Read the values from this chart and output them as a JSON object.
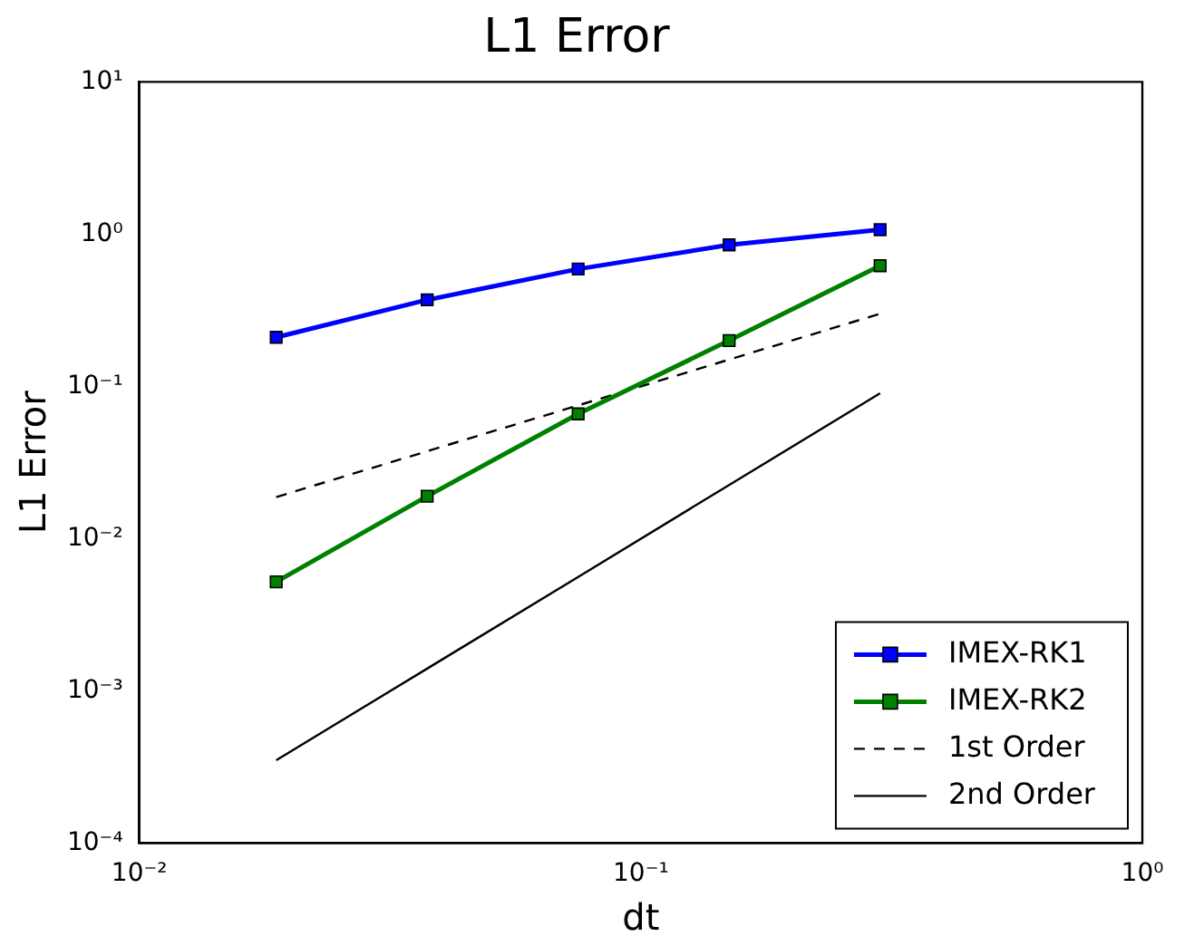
{
  "chart_data": {
    "type": "line",
    "title": "L1 Error",
    "xlabel": "dt",
    "ylabel": "L1 Error",
    "log": "xy",
    "grid": false,
    "legend": "bottom right",
    "xlim": [
      0.01,
      1
    ],
    "xticks": [
      {
        "value": 0.01,
        "label": "10⁻²"
      },
      {
        "value": 0.1,
        "label": "10⁻¹"
      },
      {
        "value": 1,
        "label": "10⁰"
      }
    ],
    "ylim": [
      0.0001,
      10
    ],
    "yticks": [
      {
        "value": 0.0001,
        "label": "10⁻⁴"
      },
      {
        "value": 0.001,
        "label": "10⁻³"
      },
      {
        "value": 0.01,
        "label": "10⁻²"
      },
      {
        "value": 0.1,
        "label": "10⁻¹"
      },
      {
        "value": 1,
        "label": "10⁰"
      },
      {
        "value": 10,
        "label": "10¹"
      }
    ],
    "x": [
      0.01875,
      0.0375,
      0.075,
      0.15,
      0.3
    ],
    "series": [
      {
        "name": "IMEX-RK1",
        "color": "#0000ff",
        "marker": "square",
        "line_style": "solid",
        "values": [
          0.21,
          0.37,
          0.59,
          0.85,
          1.07
        ]
      },
      {
        "name": "IMEX-RK2",
        "color": "#008000",
        "marker": "square",
        "line_style": "solid",
        "values": [
          0.0052,
          0.019,
          0.066,
          0.2,
          0.62
        ]
      },
      {
        "name": "1st Order",
        "color": "#000000",
        "marker": "none",
        "line_style": "dashed",
        "values": [
          0.01875,
          0.0375,
          0.075,
          0.15,
          0.3
        ]
      },
      {
        "name": "2nd Order",
        "color": "#000000",
        "marker": "none",
        "line_style": "solid",
        "values": [
          0.00035,
          0.0014,
          0.0056,
          0.0225,
          0.09
        ]
      }
    ]
  }
}
